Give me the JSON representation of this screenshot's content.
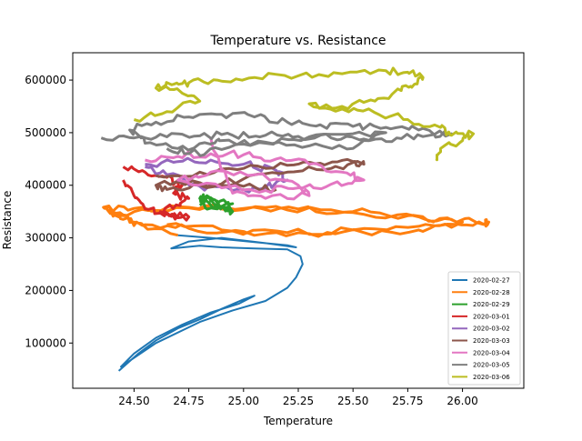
{
  "chart_data": {
    "type": "line",
    "title": "Temperature vs. Resistance",
    "xlabel": "Temperature",
    "ylabel": "Resistance",
    "xlim": [
      24.22,
      26.28
    ],
    "ylim": [
      14000,
      652000
    ],
    "xticks": [
      24.5,
      24.75,
      25.0,
      25.25,
      25.5,
      25.75,
      26.0
    ],
    "xtick_labels": [
      "24.50",
      "24.75",
      "25.00",
      "25.25",
      "25.50",
      "25.75",
      "26.00"
    ],
    "yticks": [
      100000,
      200000,
      300000,
      400000,
      500000,
      600000
    ],
    "ytick_labels": [
      "100000",
      "200000",
      "300000",
      "400000",
      "500000",
      "600000"
    ],
    "grid": false,
    "legend_position": "lower-right",
    "series": [
      {
        "name": "2020-02-27",
        "color": "#1f77b4",
        "x": [
          24.43,
          24.52,
          24.6,
          24.7,
          24.8,
          24.9,
          25.0,
          25.05,
          24.98,
          24.85,
          24.72,
          24.6,
          24.5,
          24.44,
          24.6,
          24.8,
          24.95,
          25.1,
          25.2,
          25.24,
          25.27,
          25.26,
          25.2,
          25.05,
          24.9,
          24.8,
          24.67,
          24.75,
          24.9,
          25.1,
          25.24,
          25.2,
          25.05,
          24.85,
          24.7
        ],
        "y": [
          47000,
          80000,
          105000,
          128000,
          145000,
          165000,
          183000,
          190000,
          175000,
          158000,
          135000,
          110000,
          80000,
          55000,
          100000,
          140000,
          162000,
          180000,
          205000,
          225000,
          250000,
          265000,
          278000,
          280000,
          282000,
          285000,
          280000,
          293000,
          300000,
          290000,
          282000,
          286000,
          292000,
          300000,
          305000
        ]
      },
      {
        "name": "2020-02-28",
        "color": "#ff7f0e",
        "x": [
          24.7,
          24.5,
          24.4,
          24.36,
          24.5,
          24.75,
          25.0,
          25.25,
          25.5,
          25.75,
          25.95,
          26.12,
          26.1,
          25.95,
          25.8,
          25.55,
          25.3,
          25.0,
          24.75,
          24.55,
          24.45,
          24.4,
          24.6,
          24.9,
          25.2,
          25.5,
          25.8,
          26.0,
          25.8,
          25.5,
          25.2,
          24.9,
          24.65
        ],
        "y": [
          305000,
          330000,
          350000,
          358000,
          356000,
          358000,
          356000,
          355000,
          350000,
          342000,
          335000,
          330000,
          325000,
          320000,
          315000,
          310000,
          308000,
          312000,
          318000,
          325000,
          335000,
          345000,
          352000,
          355000,
          353000,
          348000,
          340000,
          330000,
          322000,
          315000,
          310000,
          315000,
          325000
        ]
      },
      {
        "name": "2020-02-29",
        "color": "#2ca02c",
        "x": [
          24.8,
          24.85,
          24.9,
          24.95,
          24.9,
          24.82,
          24.8,
          24.87,
          24.95,
          24.88,
          24.8
        ],
        "y": [
          380000,
          370000,
          360000,
          350000,
          358000,
          368000,
          375000,
          372000,
          365000,
          355000,
          362000
        ]
      },
      {
        "name": "2020-03-01",
        "color": "#d62728",
        "x": [
          24.45,
          24.55,
          24.65,
          24.72,
          24.68,
          24.75,
          24.7,
          24.62,
          24.66,
          24.75,
          24.65,
          24.55,
          24.5,
          24.45
        ],
        "y": [
          435000,
          425000,
          415000,
          400000,
          385000,
          375000,
          362000,
          350000,
          342000,
          340000,
          345000,
          355000,
          380000,
          410000
        ]
      },
      {
        "name": "2020-03-02",
        "color": "#9467bd",
        "x": [
          24.55,
          24.7,
          24.85,
          25.0,
          25.15,
          25.2,
          25.1,
          24.95,
          24.8,
          24.65,
          24.55
        ],
        "y": [
          440000,
          445000,
          448000,
          440000,
          428000,
          410000,
          395000,
          390000,
          398000,
          420000,
          435000
        ]
      },
      {
        "name": "2020-03-03",
        "color": "#8c564b",
        "x": [
          24.6,
          24.8,
          25.0,
          25.2,
          25.35,
          25.5,
          25.55,
          25.4,
          25.2,
          25.0,
          24.8,
          24.65,
          24.6,
          24.8,
          25.0,
          25.15
        ],
        "y": [
          418000,
          425000,
          432000,
          438000,
          442000,
          445000,
          440000,
          432000,
          425000,
          412000,
          400000,
          392000,
          400000,
          405000,
          398000,
          392000
        ]
      },
      {
        "name": "2020-03-04",
        "color": "#e377c2",
        "x": [
          24.55,
          24.7,
          24.85,
          25.0,
          25.15,
          25.3,
          25.45,
          25.55,
          25.4,
          25.25,
          25.1,
          24.9,
          24.7,
          24.85,
          25.05,
          25.25,
          25.3,
          25.1,
          24.95,
          24.85
        ],
        "y": [
          448000,
          455000,
          460000,
          458000,
          450000,
          440000,
          425000,
          410000,
          402000,
          395000,
          390000,
          395000,
          410000,
          425000,
          420000,
          400000,
          380000,
          375000,
          385000,
          490000
        ]
      },
      {
        "name": "2020-03-05",
        "color": "#7f7f7f",
        "x": [
          24.35,
          24.5,
          24.65,
          24.8,
          24.95,
          25.1,
          25.25,
          25.4,
          25.55,
          25.7,
          25.85,
          25.95,
          25.8,
          25.65,
          25.5,
          25.35,
          25.2,
          25.05,
          24.9,
          24.75,
          24.6,
          24.48,
          24.55,
          24.7,
          24.85,
          24.9,
          25.1,
          25.3,
          25.5,
          25.65,
          25.5,
          25.3,
          25.1,
          24.9,
          24.75,
          24.65
        ],
        "y": [
          490000,
          490000,
          492000,
          494000,
          495000,
          495000,
          493000,
          490000,
          488000,
          490000,
          495000,
          498000,
          505000,
          510000,
          512000,
          515000,
          520000,
          530000,
          535000,
          530000,
          520000,
          505000,
          480000,
          470000,
          478000,
          485000,
          482000,
          475000,
          470000,
          500000,
          498000,
          492000,
          480000,
          468000,
          460000,
          470000
        ]
      },
      {
        "name": "2020-03-06",
        "color": "#bcbd22",
        "x": [
          24.5,
          24.65,
          24.8,
          24.72,
          24.6,
          24.68,
          24.75,
          24.88,
          25.05,
          25.25,
          25.45,
          25.65,
          25.75,
          25.82,
          25.78,
          25.72,
          25.6,
          25.45,
          25.3,
          25.45,
          25.6,
          25.75,
          25.9,
          25.95,
          26.05,
          26.0,
          25.9,
          25.88
        ],
        "y": [
          525000,
          540000,
          560000,
          575000,
          585000,
          592000,
          595000,
          600000,
          605000,
          608000,
          612000,
          618000,
          615000,
          605000,
          592000,
          580000,
          560000,
          550000,
          555000,
          545000,
          538000,
          525000,
          510000,
          495000,
          498000,
          485000,
          470000,
          450000
        ]
      }
    ]
  }
}
